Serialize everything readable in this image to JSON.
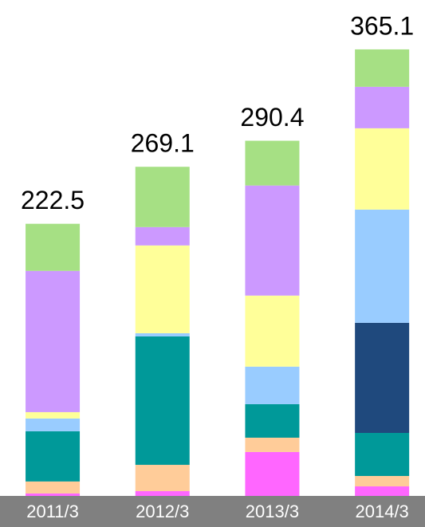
{
  "chart_data": {
    "type": "stacked_bar",
    "categories": [
      "2011/3",
      "2012/3",
      "2013/3",
      "2014/3"
    ],
    "totals": [
      "222.5",
      "269.1",
      "290.4",
      "365.1"
    ],
    "ylim": [
      0,
      400
    ],
    "series": [
      {
        "color": "#ff66ff",
        "values": [
          2.0,
          3.9,
          35.9,
          7.8
        ]
      },
      {
        "color": "#ffcc99",
        "values": [
          9.8,
          21.5,
          11.7,
          8.5
        ]
      },
      {
        "color": "#009999",
        "values": [
          41.1,
          105.0,
          27.4,
          35.2
        ]
      },
      {
        "color": "#1f497d",
        "values": [
          0,
          0,
          0,
          90.0
        ]
      },
      {
        "color": "#99ccff",
        "values": [
          10.4,
          2.6,
          30.7,
          92.6
        ]
      },
      {
        "color": "#ffff99",
        "values": [
          5.2,
          71.8,
          58.1,
          66.5
        ]
      },
      {
        "color": "#cc99ff",
        "values": [
          115.5,
          15.0,
          90.0,
          33.9
        ]
      },
      {
        "color": "#a6e084",
        "values": [
          38.5,
          49.3,
          36.6,
          30.6
        ]
      }
    ]
  }
}
